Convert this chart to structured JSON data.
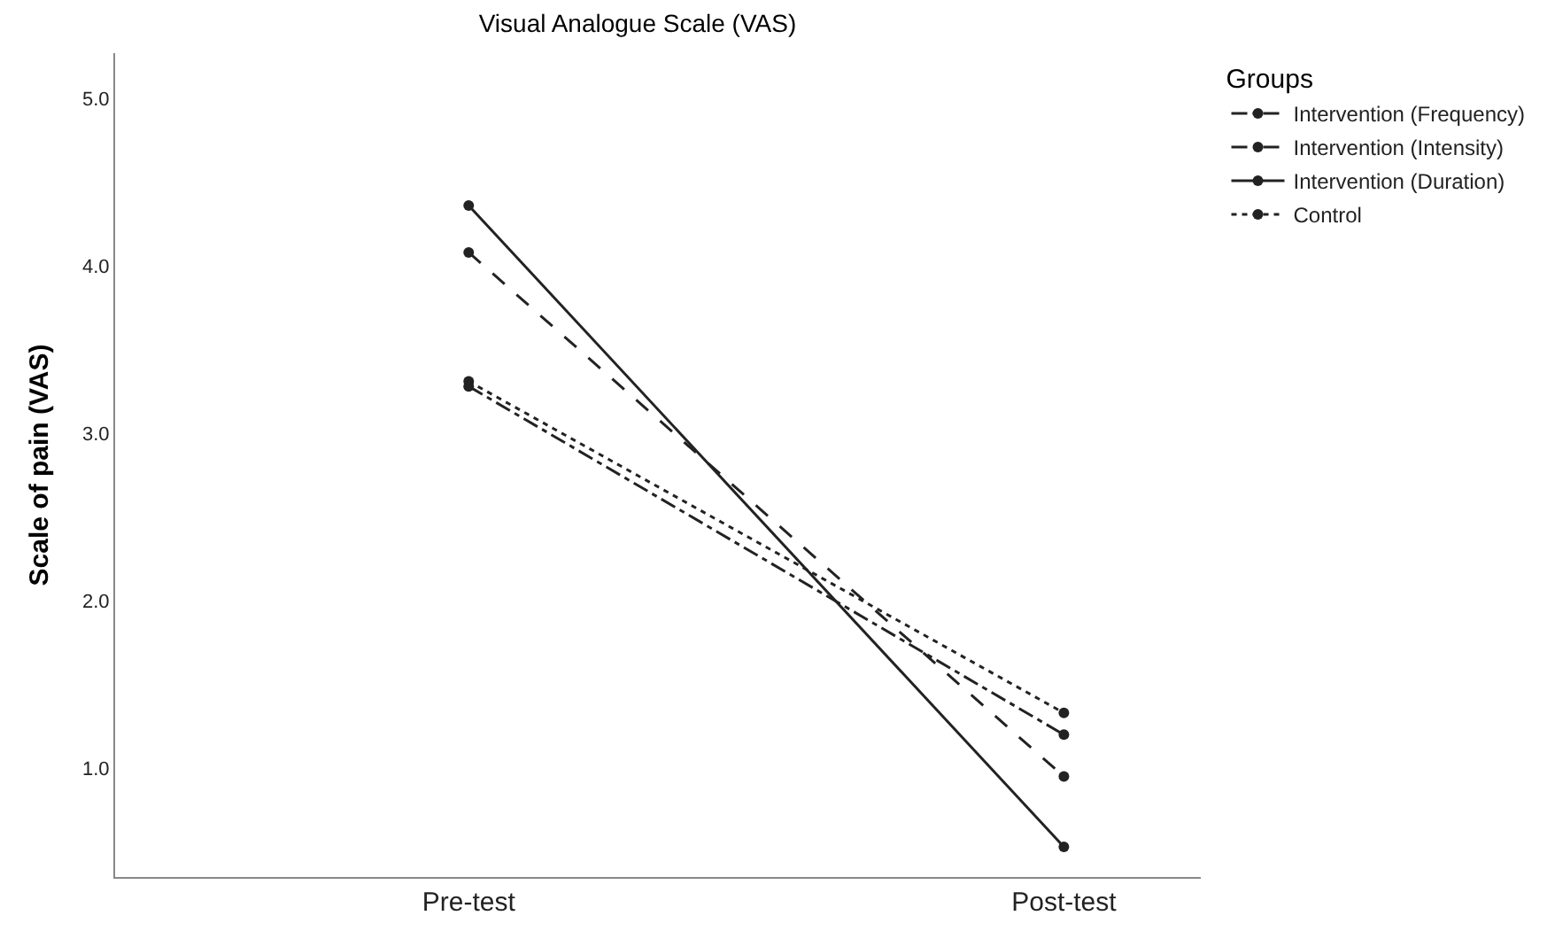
{
  "chart_data": {
    "type": "line",
    "title": "Visual Analogue Scale (VAS)",
    "ylabel": "Scale of pain (VAS)",
    "legend_title": "Groups",
    "categories": [
      "Pre-test",
      "Post-test"
    ],
    "series": [
      {
        "name": "Intervention (Frequency)",
        "color": "#222222",
        "line_style": "dashdot",
        "values": [
          3.28,
          1.2
        ]
      },
      {
        "name": "Intervention (Intensity)",
        "color": "#222222",
        "line_style": "dashed",
        "values": [
          4.08,
          0.95
        ]
      },
      {
        "name": "Intervention (Duration)",
        "color": "#222222",
        "line_style": "solid",
        "values": [
          4.36,
          0.53
        ]
      },
      {
        "name": "Control",
        "color": "#222222",
        "line_style": "dotted",
        "values": [
          3.31,
          1.33
        ]
      }
    ],
    "ylim": [
      0.35,
      5.27
    ],
    "yticks": [
      {
        "value": 1,
        "label": "1.0"
      },
      {
        "value": 2,
        "label": "2.0"
      },
      {
        "value": 3,
        "label": "3.0"
      },
      {
        "value": 4,
        "label": "4.0"
      },
      {
        "value": 5,
        "label": "5.0"
      }
    ],
    "legend": "top right",
    "marker": "circle"
  }
}
